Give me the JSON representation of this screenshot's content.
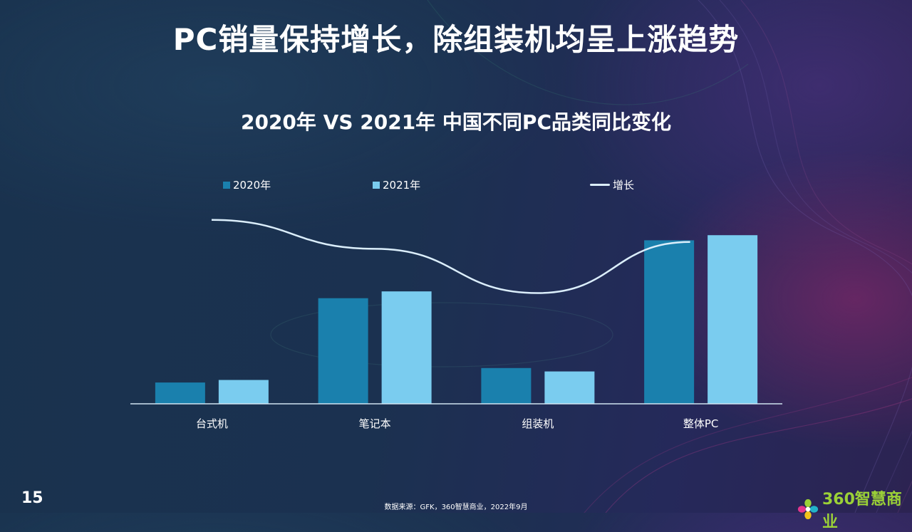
{
  "header": {
    "title": "PC销量保持增长，除组装机均呈上涨趋势"
  },
  "chart_data": {
    "type": "bar",
    "title": "2020年 VS 2021年 中国不同PC品类同比变化",
    "categories": [
      "台式机",
      "笔记本",
      "组装机",
      "整体PC"
    ],
    "series": [
      {
        "name": "2020年",
        "color": "#1a80ad",
        "values": [
          12.5,
          62,
          21,
          96
        ]
      },
      {
        "name": "2021年",
        "color": "#7accef",
        "values": [
          14,
          66,
          19,
          99
        ]
      }
    ],
    "growth_line": {
      "name": "增长",
      "color": "#dbeefb",
      "values": [
        108,
        91,
        65,
        95
      ]
    },
    "ylim": [
      0,
      120
    ],
    "legend_position": "top",
    "xlabel": "",
    "ylabel": ""
  },
  "footer": {
    "page_number": "15",
    "source": "数据来源：GFK，360智慧商业，2022年9月",
    "logo_text": "360智慧商业"
  }
}
